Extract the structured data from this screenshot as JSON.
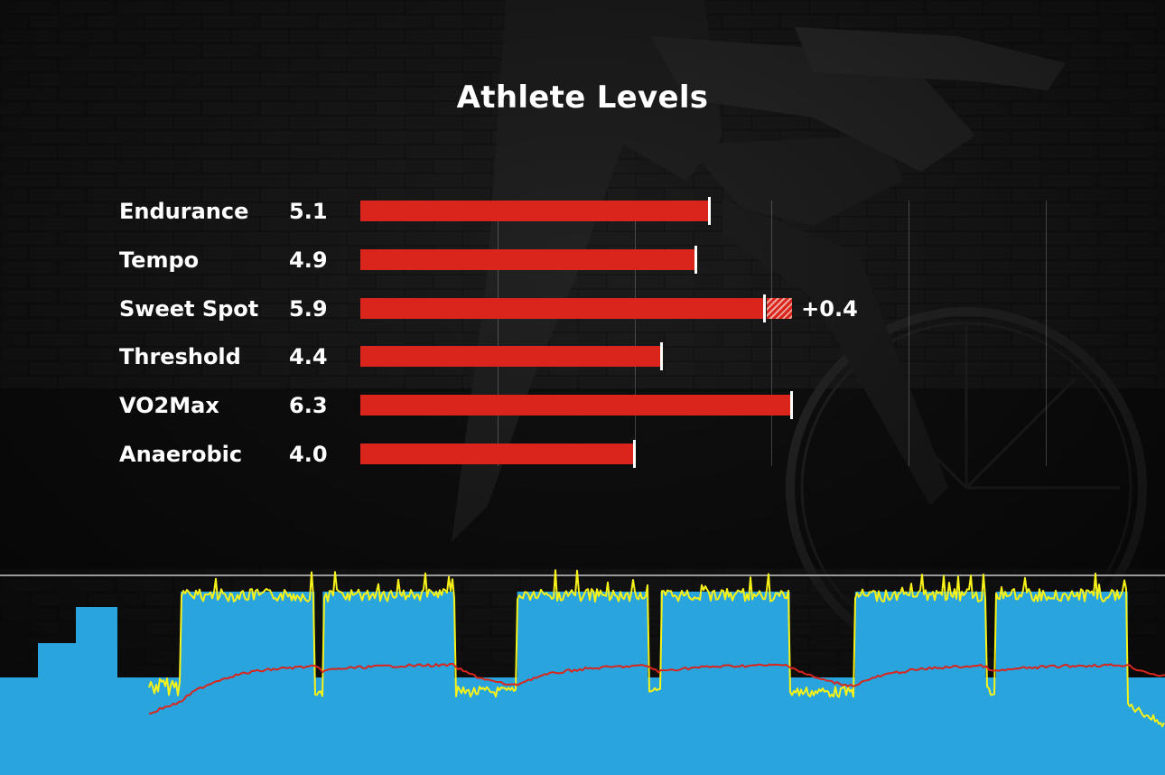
{
  "title": "Athlete Levels",
  "chart_data": {
    "type": "bar",
    "orientation": "horizontal",
    "title": "Athlete Levels",
    "xlim": [
      0,
      10
    ],
    "grid": true,
    "categories": [
      "Endurance",
      "Tempo",
      "Sweet Spot",
      "Threshold",
      "VO2Max",
      "Anaerobic"
    ],
    "value_labels": [
      "5.1",
      "4.9",
      "5.9",
      "4.4",
      "6.3",
      "4.0"
    ],
    "values": [
      5.1,
      4.9,
      5.9,
      4.4,
      6.3,
      4.0
    ],
    "increase": {
      "category": "Sweet Spot",
      "amount": 0.4,
      "label": "+0.4"
    },
    "colors": {
      "bar": "#d9251c",
      "marker": "#ffffff"
    }
  },
  "workout_graph": {
    "colors": {
      "interval_fill": "#29a4dc",
      "power_line": "#f7f21a",
      "heart_rate_line": "#d9251c",
      "ftp_line": "#9a9a9a"
    },
    "warmup_steps": [
      0.45,
      0.62,
      0.78
    ],
    "intervals": [
      {
        "start": 0.155,
        "end": 0.27
      },
      {
        "start": 0.277,
        "end": 0.39
      },
      {
        "start": 0.444,
        "end": 0.556
      },
      {
        "start": 0.567,
        "end": 0.678
      },
      {
        "start": 0.734,
        "end": 0.846
      },
      {
        "start": 0.855,
        "end": 0.968
      }
    ]
  }
}
